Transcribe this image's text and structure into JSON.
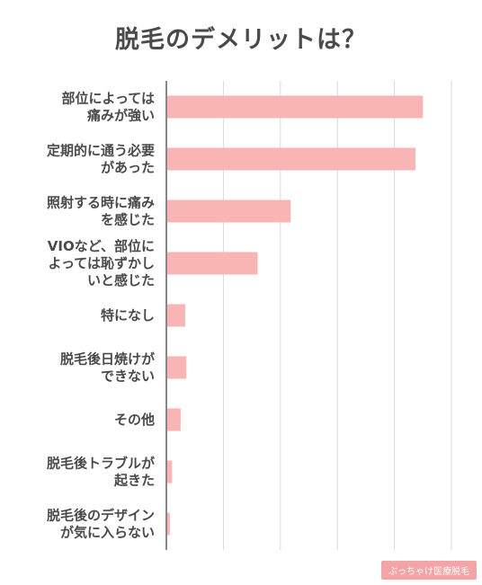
{
  "chart_data": {
    "type": "bar",
    "orientation": "horizontal",
    "title": "脱毛のデメリットは？",
    "categories": [
      [
        "部位によっては",
        "痛みが強い"
      ],
      [
        "定期的に通う必要",
        "があった"
      ],
      [
        "照射する時に痛み",
        "を感じた"
      ],
      [
        "VIOなど、部位に",
        "よっては恥ずかし",
        "いと感じた"
      ],
      [
        "特になし"
      ],
      [
        "脱毛後日焼けが",
        "できない"
      ],
      [
        "その他"
      ],
      [
        "脱毛後トラブルが",
        "起きた"
      ],
      [
        "脱毛後のデザイン",
        "が気に入らない"
      ]
    ],
    "values": [
      45,
      43.7,
      21.8,
      16,
      3.3,
      3.5,
      2.5,
      1,
      0.6
    ],
    "xlim": [
      0,
      50
    ],
    "grid": true,
    "bar_color": "#f9b4b4",
    "grid_color": "#d9d9d9",
    "axis_color": "#888888"
  },
  "watermark": "ぶっちゃけ医療脱毛"
}
